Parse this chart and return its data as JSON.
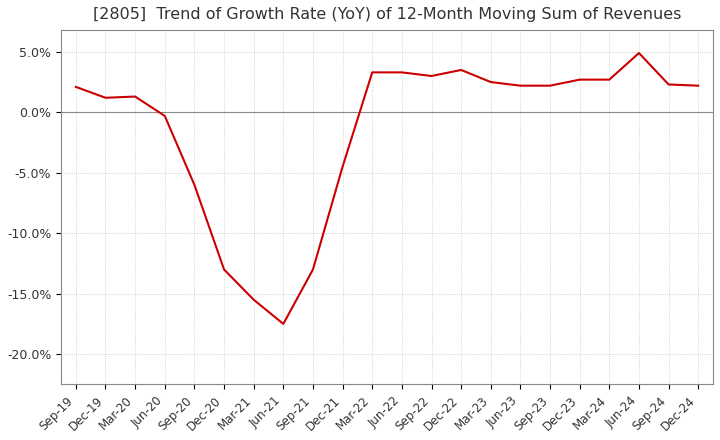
{
  "title": "[2805]  Trend of Growth Rate (YoY) of 12-Month Moving Sum of Revenues",
  "title_fontsize": 11.5,
  "line_color": "#cc0000",
  "background_color": "#ffffff",
  "grid_color": "#aaaaaa",
  "ylim": [
    -0.225,
    0.068
  ],
  "yticks": [
    0.05,
    0.0,
    -0.05,
    -0.1,
    -0.15,
    -0.2
  ],
  "ytick_labels": [
    "5.0%",
    "0.0%",
    "-5.0%",
    "-10.0%",
    "-15.0%",
    "-20.0%"
  ],
  "x_labels": [
    "Sep-19",
    "Dec-19",
    "Mar-20",
    "Jun-20",
    "Sep-20",
    "Dec-20",
    "Mar-21",
    "Jun-21",
    "Sep-21",
    "Dec-21",
    "Mar-22",
    "Jun-22",
    "Sep-22",
    "Dec-22",
    "Mar-23",
    "Jun-23",
    "Sep-23",
    "Dec-23",
    "Mar-24",
    "Jun-24",
    "Sep-24",
    "Dec-24"
  ],
  "y_values": [
    0.021,
    0.012,
    0.013,
    -0.003,
    -0.06,
    -0.13,
    -0.155,
    -0.175,
    -0.13,
    -0.045,
    0.033,
    0.033,
    0.03,
    0.035,
    0.025,
    0.022,
    0.022,
    0.027,
    0.027,
    0.049,
    0.023,
    0.022
  ]
}
